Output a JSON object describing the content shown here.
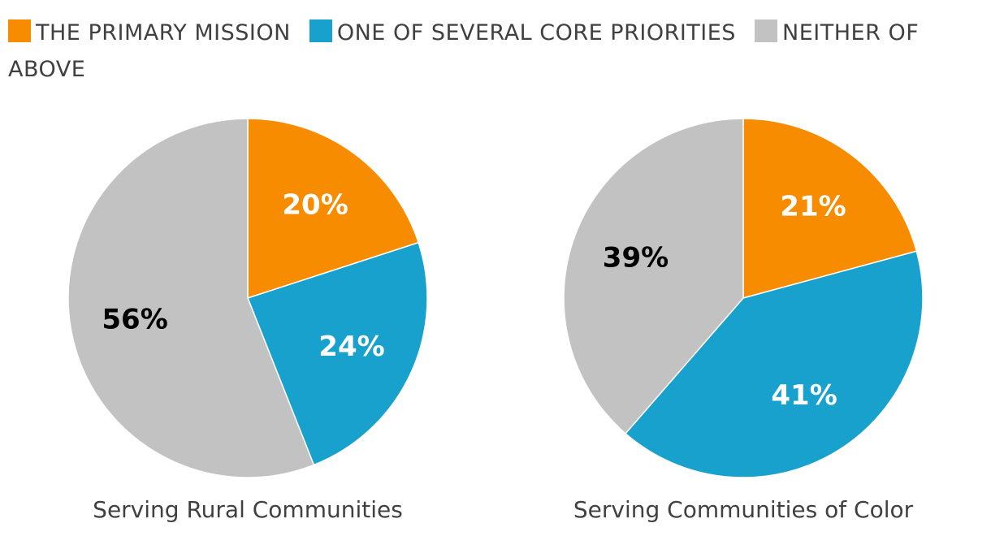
{
  "legend": [
    {
      "label": "THE PRIMARY MISSION",
      "color": "#F78C00"
    },
    {
      "label": "ONE OF SEVERAL CORE PRIORITIES",
      "color": "#19A1CE"
    },
    {
      "label": "NEITHER OF ABOVE",
      "color": "#C2C2C2"
    }
  ],
  "chart_data": [
    {
      "type": "pie",
      "title": "Serving Rural Communities",
      "categories": [
        "THE PRIMARY MISSION",
        "ONE OF SEVERAL CORE PRIORITIES",
        "NEITHER OF ABOVE"
      ],
      "values": [
        20,
        24,
        56
      ],
      "labels": [
        "20%",
        "24%",
        "56%"
      ],
      "colors": [
        "#F78C00",
        "#19A1CE",
        "#C2C2C2"
      ],
      "label_colors": [
        "#FFFFFF",
        "#FFFFFF",
        "#000000"
      ]
    },
    {
      "type": "pie",
      "title": "Serving Communities of Color",
      "categories": [
        "THE PRIMARY MISSION",
        "ONE OF SEVERAL CORE PRIORITIES",
        "NEITHER OF ABOVE"
      ],
      "values": [
        21,
        41,
        39
      ],
      "labels": [
        "21%",
        "41%",
        "39%"
      ],
      "colors": [
        "#F78C00",
        "#19A1CE",
        "#C2C2C2"
      ],
      "label_colors": [
        "#FFFFFF",
        "#FFFFFF",
        "#000000"
      ]
    }
  ]
}
